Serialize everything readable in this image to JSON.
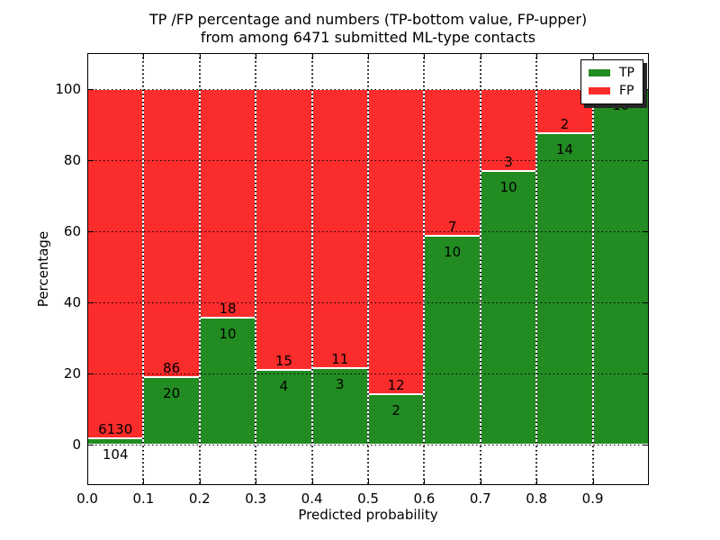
{
  "chart_data": {
    "type": "bar",
    "variant": "stacked-percentage-histogram",
    "title": "TP /FP percentage and numbers (TP-bottom value, FP-upper)\nfrom among 6471 submitted ML-type contacts",
    "xlabel": "Predicted probability",
    "ylabel": "Percentage",
    "total_contacts": 6471,
    "bin_edges": [
      0.0,
      0.1,
      0.2,
      0.3,
      0.4,
      0.5,
      0.6,
      0.7,
      0.8,
      0.9,
      1.0
    ],
    "series": [
      {
        "name": "TP",
        "color": "#228B22",
        "counts": [
          104,
          20,
          10,
          4,
          3,
          2,
          10,
          10,
          14,
          10
        ]
      },
      {
        "name": "FP",
        "color": "#FB2C2C",
        "counts": [
          6130,
          86,
          18,
          15,
          11,
          12,
          7,
          3,
          2,
          0
        ]
      }
    ],
    "tp_percent_heights": [
      1.67,
      18.87,
      35.71,
      21.05,
      21.43,
      14.29,
      58.82,
      76.92,
      87.5,
      100.0
    ],
    "xticks": [
      "0.0",
      "0.1",
      "0.2",
      "0.3",
      "0.4",
      "0.5",
      "0.6",
      "0.7",
      "0.8",
      "0.9"
    ],
    "yticks": [
      0,
      20,
      40,
      60,
      80,
      100
    ],
    "xlim": [
      0.0,
      1.0
    ],
    "ylim": [
      -11.5,
      110.1
    ],
    "grid": {
      "style": "dotted",
      "color": "#000000"
    },
    "legend": {
      "position": "upper right",
      "entries": [
        "TP",
        "FP"
      ],
      "frame_color": "#000000",
      "shadow": true
    },
    "bar_edge_color": "#FFFFFF",
    "annotation_rule": "TP count printed below segment top, FP count printed above segment top"
  }
}
